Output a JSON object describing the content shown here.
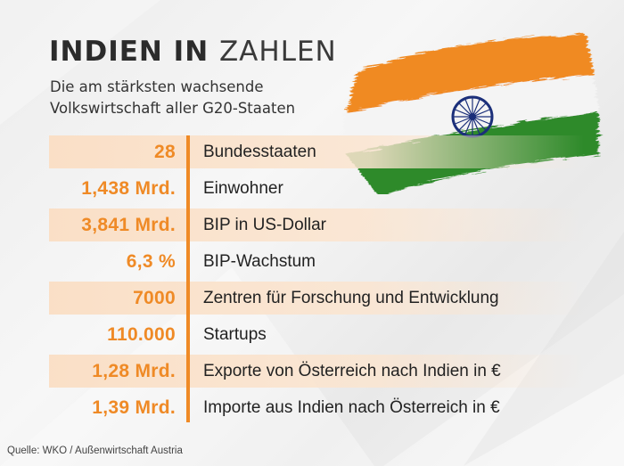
{
  "title": {
    "bold": "INDIEN IN",
    "light": "ZAHLEN"
  },
  "subtitle": {
    "line1": "Die am stärksten wachsende",
    "line2": "Volkswirtschaft aller G20-Staaten"
  },
  "rows": [
    {
      "value": "28",
      "label": "Bundesstaaten"
    },
    {
      "value": "1,438 Mrd.",
      "label": "Einwohner"
    },
    {
      "value": "3,841 Mrd.",
      "label": "BIP in US-Dollar"
    },
    {
      "value": "6,3 %",
      "label": "BIP-Wachstum"
    },
    {
      "value": "7000",
      "label": "Zentren für Forschung und Entwicklung"
    },
    {
      "value": "110.000",
      "label": "Startups"
    },
    {
      "value": "1,28 Mrd.",
      "label": "Exporte von Österreich nach Indien in €"
    },
    {
      "value": "1,39 Mrd.",
      "label": "Importe aus Indien nach Österreich in €"
    }
  ],
  "source": "Quelle: WKO / Außenwirtschaft Austria",
  "colors": {
    "accent": "#ef8a26",
    "flag_saffron": "#f08a22",
    "flag_green": "#2e8a2a",
    "chakra": "#1b2f7a"
  },
  "icons": {
    "flag": "india-flag-brushstroke-icon"
  }
}
